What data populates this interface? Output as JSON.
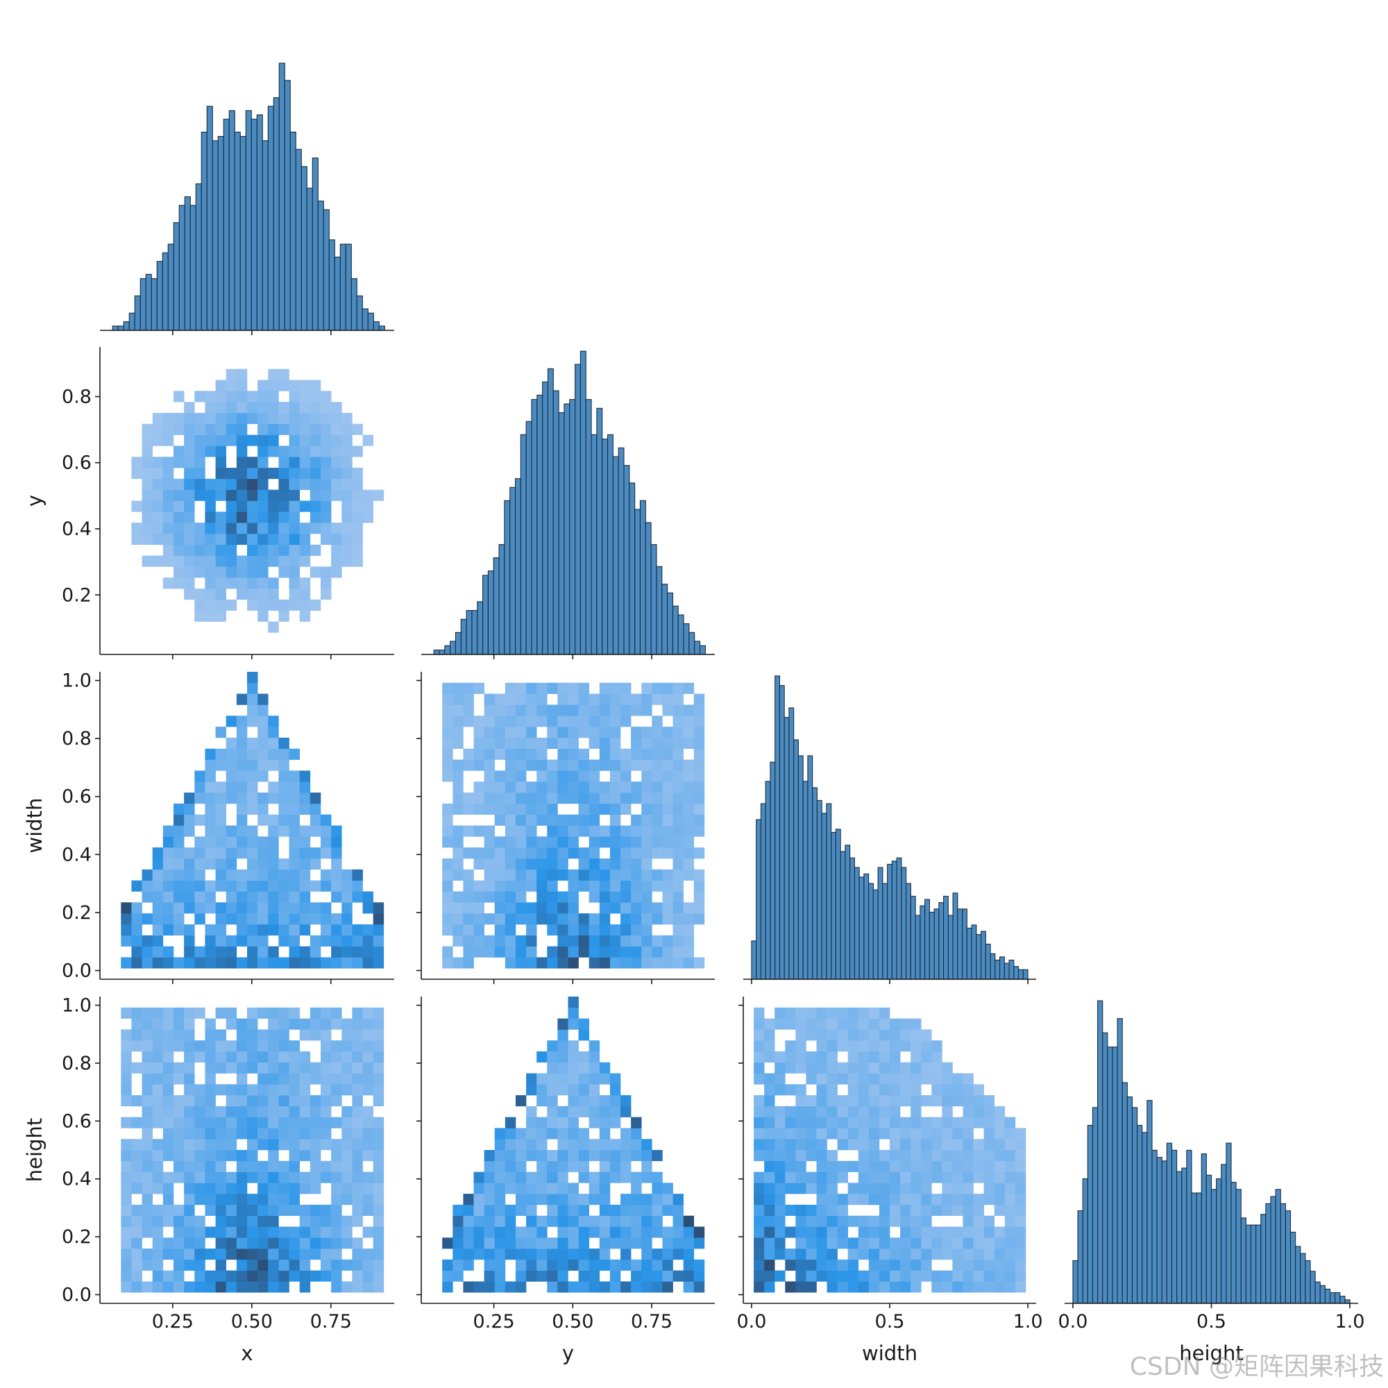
{
  "chart_data": {
    "type": "pairplot",
    "grid": false,
    "variables": [
      "x",
      "y",
      "width",
      "height"
    ],
    "colors": {
      "hist_fill": "#4a8bc1",
      "hist_edge": "#1f2b3a",
      "heat_low": "#a8c8f0",
      "heat_mid": "#2b95e8",
      "heat_high": "#2c4f78"
    },
    "axes": {
      "x": {
        "label": "x",
        "range": [
          0.02,
          0.95
        ],
        "ticks": [
          0.25,
          0.5,
          0.75
        ],
        "tick_labels": [
          "0.25",
          "0.50",
          "0.75"
        ]
      },
      "y": {
        "label": "y",
        "range": [
          0.02,
          0.95
        ],
        "ticks": [
          0.2,
          0.4,
          0.6,
          0.8
        ],
        "tick_labels": [
          "0.2",
          "0.4",
          "0.6",
          "0.8"
        ],
        "x_ticks": [
          0.25,
          0.5,
          0.75
        ],
        "x_tick_labels": [
          "0.25",
          "0.50",
          "0.75"
        ]
      },
      "width": {
        "label": "width",
        "range": [
          -0.03,
          1.03
        ],
        "ticks": [
          0.0,
          0.2,
          0.4,
          0.6,
          0.8,
          1.0
        ],
        "tick_labels": [
          "0.0",
          "0.2",
          "0.4",
          "0.6",
          "0.8",
          "1.0"
        ],
        "x_ticks": [
          0.0,
          0.5,
          1.0
        ],
        "x_tick_labels": [
          "0.0",
          "0.5",
          "1.0"
        ]
      },
      "height": {
        "label": "height",
        "range": [
          -0.03,
          1.03
        ],
        "ticks": [
          0.0,
          0.2,
          0.4,
          0.6,
          0.8,
          1.0
        ],
        "tick_labels": [
          "0.0",
          "0.2",
          "0.4",
          "0.6",
          "0.8",
          "1.0"
        ],
        "x_ticks": [
          0.0,
          0.5,
          1.0
        ],
        "x_tick_labels": [
          "0.0",
          "0.5",
          "1.0"
        ]
      }
    },
    "histograms": {
      "x": {
        "x_range": [
          0.06,
          0.92
        ],
        "counts": [
          1,
          1,
          2,
          4,
          8,
          12,
          13,
          12,
          16,
          18,
          20,
          25,
          29,
          31,
          29,
          34,
          46,
          52,
          44,
          45,
          49,
          51,
          46,
          45,
          51,
          49,
          50,
          44,
          52,
          54,
          62,
          58,
          46,
          42,
          38,
          33,
          40,
          30,
          28,
          21,
          17,
          20,
          20,
          12,
          8,
          5,
          4,
          2,
          1
        ]
      },
      "y": {
        "x_range": [
          0.06,
          0.92
        ],
        "counts": [
          1,
          1,
          2,
          3,
          5,
          8,
          10,
          10,
          12,
          18,
          19,
          22,
          25,
          35,
          38,
          40,
          50,
          53,
          58,
          59,
          62,
          65,
          60,
          55,
          57,
          58,
          66,
          69,
          58,
          50,
          56,
          49,
          50,
          45,
          47,
          43,
          39,
          33,
          35,
          30,
          25,
          20,
          16,
          14,
          11,
          9,
          7,
          5,
          3,
          2
        ]
      },
      "width": {
        "x_range": [
          0.0,
          1.0
        ],
        "counts": [
          12,
          50,
          55,
          62,
          68,
          95,
          92,
          82,
          85,
          75,
          70,
          62,
          70,
          60,
          56,
          52,
          55,
          46,
          47,
          40,
          42,
          38,
          35,
          32,
          33,
          30,
          28,
          35,
          30,
          36,
          37,
          38,
          35,
          30,
          26,
          20,
          23,
          25,
          21,
          22,
          24,
          26,
          20,
          27,
          22,
          22,
          16,
          17,
          14,
          15,
          11,
          8,
          6,
          7,
          5,
          6,
          4,
          3,
          3
        ]
      },
      "height": {
        "x_range": [
          0.0,
          1.0
        ],
        "counts": [
          12,
          26,
          35,
          50,
          55,
          85,
          76,
          72,
          72,
          80,
          62,
          58,
          55,
          50,
          48,
          57,
          43,
          41,
          40,
          45,
          43,
          37,
          38,
          43,
          31,
          31,
          42,
          36,
          32,
          35,
          39,
          45,
          34,
          32,
          24,
          22,
          22,
          22,
          25,
          28,
          30,
          32,
          28,
          26,
          20,
          16,
          14,
          12,
          9,
          6,
          5,
          4,
          3,
          3,
          2,
          1
        ]
      }
    },
    "heatmap_panels": [
      {
        "row": "y",
        "col": "x",
        "pattern": "central blob, density peaks near (0.5, 0.5)"
      },
      {
        "row": "width",
        "col": "x",
        "pattern": "triangle, density concentrated at low width and along edges width = 1 - 2|x - 0.5|"
      },
      {
        "row": "width",
        "col": "y",
        "pattern": "broad, densest at low width around y ≈ 0.5"
      },
      {
        "row": "height",
        "col": "x",
        "pattern": "broad, densest at low height around x ≈ 0.5"
      },
      {
        "row": "height",
        "col": "y",
        "pattern": "triangle, density concentrated at low height and along edges height = 1 - 2|y - 0.5|"
      },
      {
        "row": "height",
        "col": "width",
        "pattern": "densest at low width and low height, fading toward upper right"
      }
    ]
  },
  "watermark": "CSDN @矩阵因果科技"
}
